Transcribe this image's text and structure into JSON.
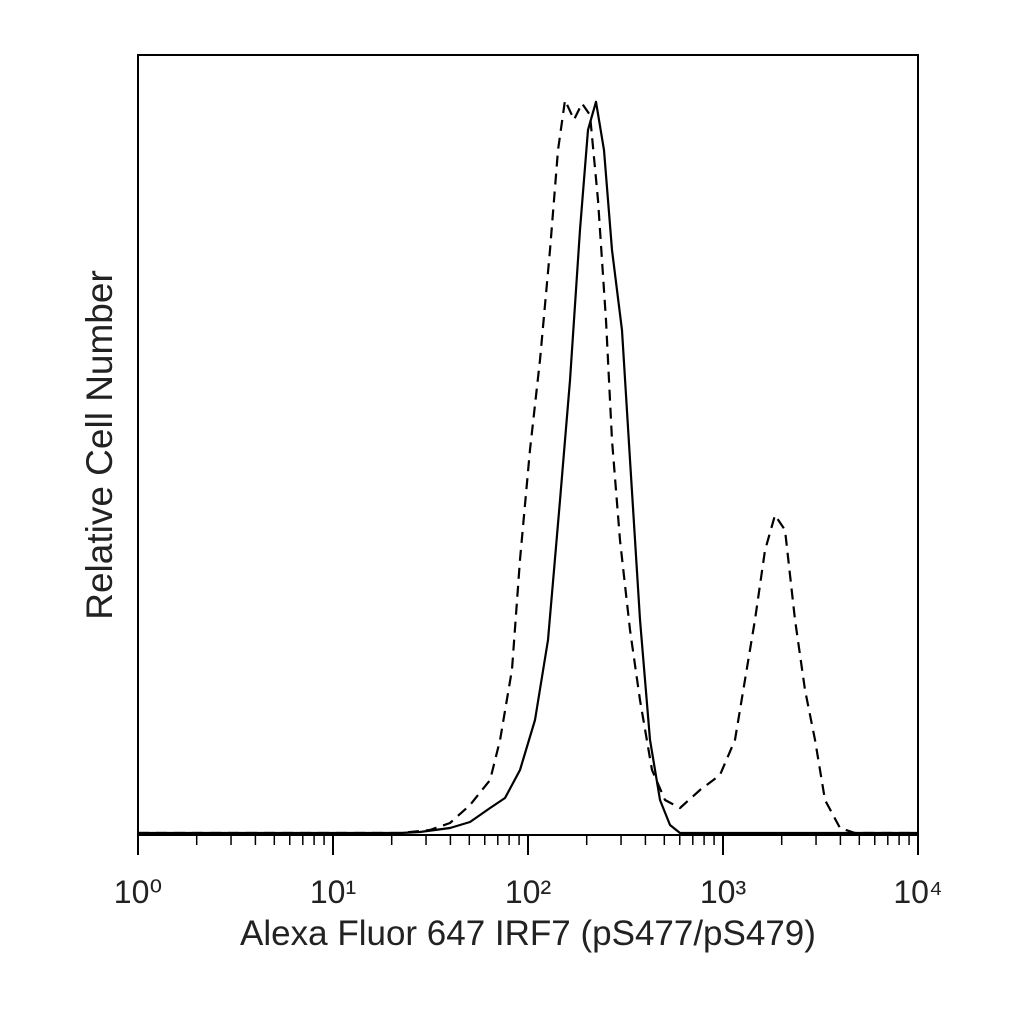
{
  "chart_data": {
    "type": "line",
    "xlabel": "Alexa Fluor 647 IRF7 (pS477/pS479)",
    "ylabel": "Relative Cell Number",
    "log_x": true,
    "xlim": [
      1,
      10000
    ],
    "ylim": [
      0,
      100
    ],
    "xticks": [
      {
        "value": 1,
        "label": "10⁰"
      },
      {
        "value": 10,
        "label": "10¹"
      },
      {
        "value": 100,
        "label": "10²"
      },
      {
        "value": 1000,
        "label": "10³"
      },
      {
        "value": 10000,
        "label": "10⁴"
      }
    ],
    "xminorticks": [
      2,
      3,
      4,
      5,
      6,
      7,
      8,
      9,
      20,
      30,
      40,
      50,
      60,
      70,
      80,
      90,
      200,
      300,
      400,
      500,
      600,
      700,
      800,
      900,
      2000,
      3000,
      4000,
      5000,
      6000,
      7000,
      8000,
      9000
    ],
    "series": [
      {
        "color": "#000000",
        "dash": false,
        "x": [
          1,
          22.1,
          27.9,
          39.8,
          50.4,
          63.9,
          76.2,
          91.0,
          108.6,
          126.6,
          145.9,
          164.2,
          184.8,
          203.1,
          223.2,
          245.3,
          269.7,
          303.5,
          333.6,
          375.4,
          422.4,
          475.3,
          534.8,
          601.8,
          10000
        ],
        "values": [
          0.26,
          0.26,
          0.38,
          0.9,
          1.67,
          3.46,
          4.74,
          8.33,
          14.74,
          25.0,
          42.9,
          58.3,
          77.6,
          90.4,
          94.0,
          87.8,
          75.0,
          64.7,
          48.1,
          27.6,
          12.2,
          4.49,
          1.28,
          0.26,
          0.26
        ]
      },
      {
        "color": "#000000",
        "dash": true,
        "x": [
          1,
          22.1,
          31.4,
          39.8,
          50.4,
          63.9,
          71.9,
          82.8,
          91.0,
          102.4,
          115.2,
          129.7,
          142.5,
          154.8,
          172.2,
          189.2,
          207.9,
          228.6,
          251.2,
          269.7,
          296.3,
          333.6,
          375.4,
          432.4,
          504.2,
          601.8,
          762.2,
          965.2,
          1152,
          1297,
          1459,
          1642,
          1848,
          2079,
          2340,
          2633,
          2963,
          3336,
          3981,
          4753,
          10000
        ],
        "values": [
          0.26,
          0.26,
          0.64,
          1.54,
          3.85,
          7.05,
          12.2,
          21.2,
          35.3,
          49.4,
          60.9,
          75.0,
          87.8,
          94.2,
          91.7,
          93.8,
          92.3,
          81.4,
          66.0,
          50.6,
          37.8,
          26.3,
          17.3,
          8.33,
          4.49,
          3.46,
          5.77,
          7.69,
          12.2,
          19.9,
          27.6,
          36.5,
          41.0,
          39.1,
          27.6,
          18.6,
          12.2,
          4.49,
          0.9,
          0.26,
          0.26
        ]
      }
    ]
  }
}
